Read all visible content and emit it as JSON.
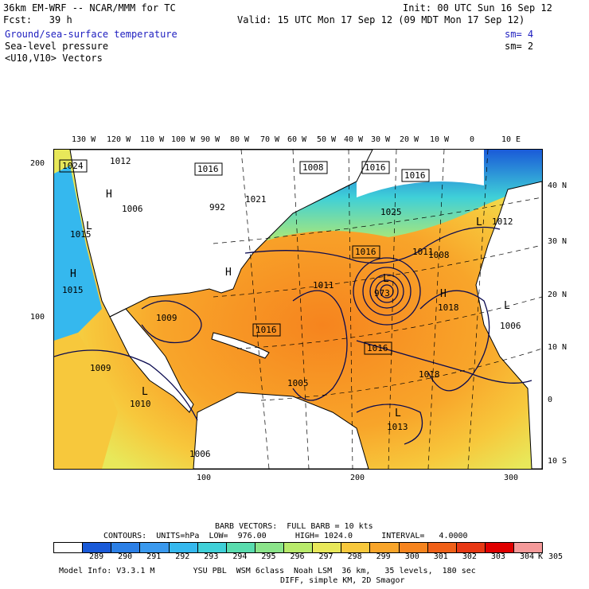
{
  "header": {
    "model": "36km EM-WRF -- NCAR/MMM for TC",
    "init": "Init: 00 UTC Sun 16 Sep 12",
    "fcst": "Fcst:   39 h",
    "valid": "Valid: 15 UTC Mon 17 Sep 12 (09 MDT Mon 17 Sep 12)",
    "field1": "Ground/sea-surface temperature",
    "sm1": "sm= 4",
    "field2": "Sea-level pressure",
    "sm2": "sm= 2",
    "field3": "<U10,V10> Vectors"
  },
  "map": {
    "lon_labels_top": [
      "130 W",
      "120 W",
      "110 W",
      "100 W",
      "90 W",
      "80 W",
      "70 W",
      "60 W",
      "50 W",
      "40 W",
      "30 W",
      "20 W",
      "10 W",
      "0",
      "10 E"
    ],
    "lat_labels_right": [
      "40 N",
      "30 N",
      "20 N",
      "10 N",
      "0",
      "10 S"
    ],
    "grid_left": [
      "200",
      "100"
    ],
    "grid_bottom": [
      "100",
      "200",
      "300"
    ],
    "pressure_labels": [
      "1024",
      "1012",
      "1016",
      "1008",
      "1016",
      "1016",
      "1021",
      "1015",
      "1006",
      "992",
      "1016",
      "1025",
      "1011",
      "1012",
      "1008",
      "1015",
      "1011",
      "1009",
      "973",
      "1018",
      "1006",
      "1016",
      "1016",
      "1009",
      "1005",
      "1018",
      "1010",
      "1013",
      "1006"
    ],
    "highs": [
      "H",
      "H",
      "H",
      "H"
    ],
    "lows": [
      "L",
      "L",
      "L",
      "L",
      "L",
      "L"
    ]
  },
  "footer": {
    "barb_info": "BARB VECTORS:  FULL BARB = 10 kts",
    "contours": "CONTOURS:  UNITS=hPa  LOW=  976.00      HIGH= 1024.0      INTERVAL=   4.0000",
    "colorbar_ticks": [
      "289",
      "290",
      "291",
      "292",
      "293",
      "294",
      "295",
      "296",
      "297",
      "298",
      "299",
      "300",
      "301",
      "302",
      "303",
      "304",
      "305"
    ],
    "colorbar_unit": "K",
    "model_info": "Model Info: V3.3.1 M        YSU PBL  WSM 6class  Noah LSM  36 km,   35 levels,  180 sec",
    "model_info2": "DIFF, simple KM, 2D Smagor"
  },
  "colors": {
    "cb": [
      "#ffffff",
      "#1a5ad8",
      "#2b7fe6",
      "#3a99ee",
      "#35b8ee",
      "#3fd0d8",
      "#59dcae",
      "#8be48a",
      "#b8ea6b",
      "#e8e85a",
      "#f7c83c",
      "#f8a52a",
      "#f6841e",
      "#f06018",
      "#e83814",
      "#e00000",
      "#f59a9a"
    ]
  }
}
